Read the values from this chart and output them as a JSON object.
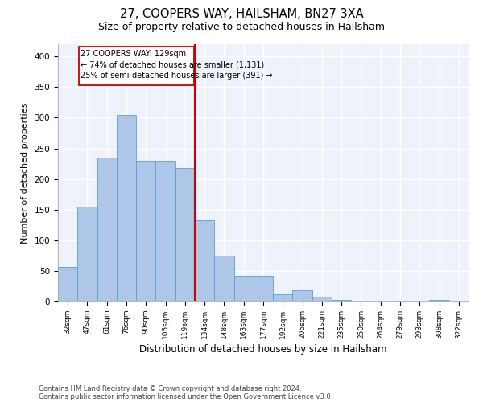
{
  "title1": "27, COOPERS WAY, HAILSHAM, BN27 3XA",
  "title2": "Size of property relative to detached houses in Hailsham",
  "xlabel": "Distribution of detached houses by size in Hailsham",
  "ylabel": "Number of detached properties",
  "categories": [
    "32sqm",
    "47sqm",
    "61sqm",
    "76sqm",
    "90sqm",
    "105sqm",
    "119sqm",
    "134sqm",
    "148sqm",
    "163sqm",
    "177sqm",
    "192sqm",
    "206sqm",
    "221sqm",
    "235sqm",
    "250sqm",
    "264sqm",
    "279sqm",
    "293sqm",
    "308sqm",
    "322sqm"
  ],
  "values": [
    57,
    155,
    235,
    305,
    230,
    230,
    218,
    133,
    75,
    42,
    42,
    12,
    19,
    8,
    3,
    0,
    0,
    0,
    0,
    3,
    0
  ],
  "bar_color": "#aec6e8",
  "bar_edge_color": "#5a9fd4",
  "annotation_line1": "27 COOPERS WAY: 129sqm",
  "annotation_line2": "← 74% of detached houses are smaller (1,131)",
  "annotation_line3": "25% of semi-detached houses are larger (391) →",
  "vline_color": "#cc0000",
  "box_color": "#cc0000",
  "footnote1": "Contains HM Land Registry data © Crown copyright and database right 2024.",
  "footnote2": "Contains public sector information licensed under the Open Government Licence v3.0.",
  "ylim": [
    0,
    420
  ],
  "yticks": [
    0,
    50,
    100,
    150,
    200,
    250,
    300,
    350,
    400
  ],
  "bg_color": "#eef3fb",
  "grid_color": "#ffffff",
  "fig_bg": "#ffffff"
}
